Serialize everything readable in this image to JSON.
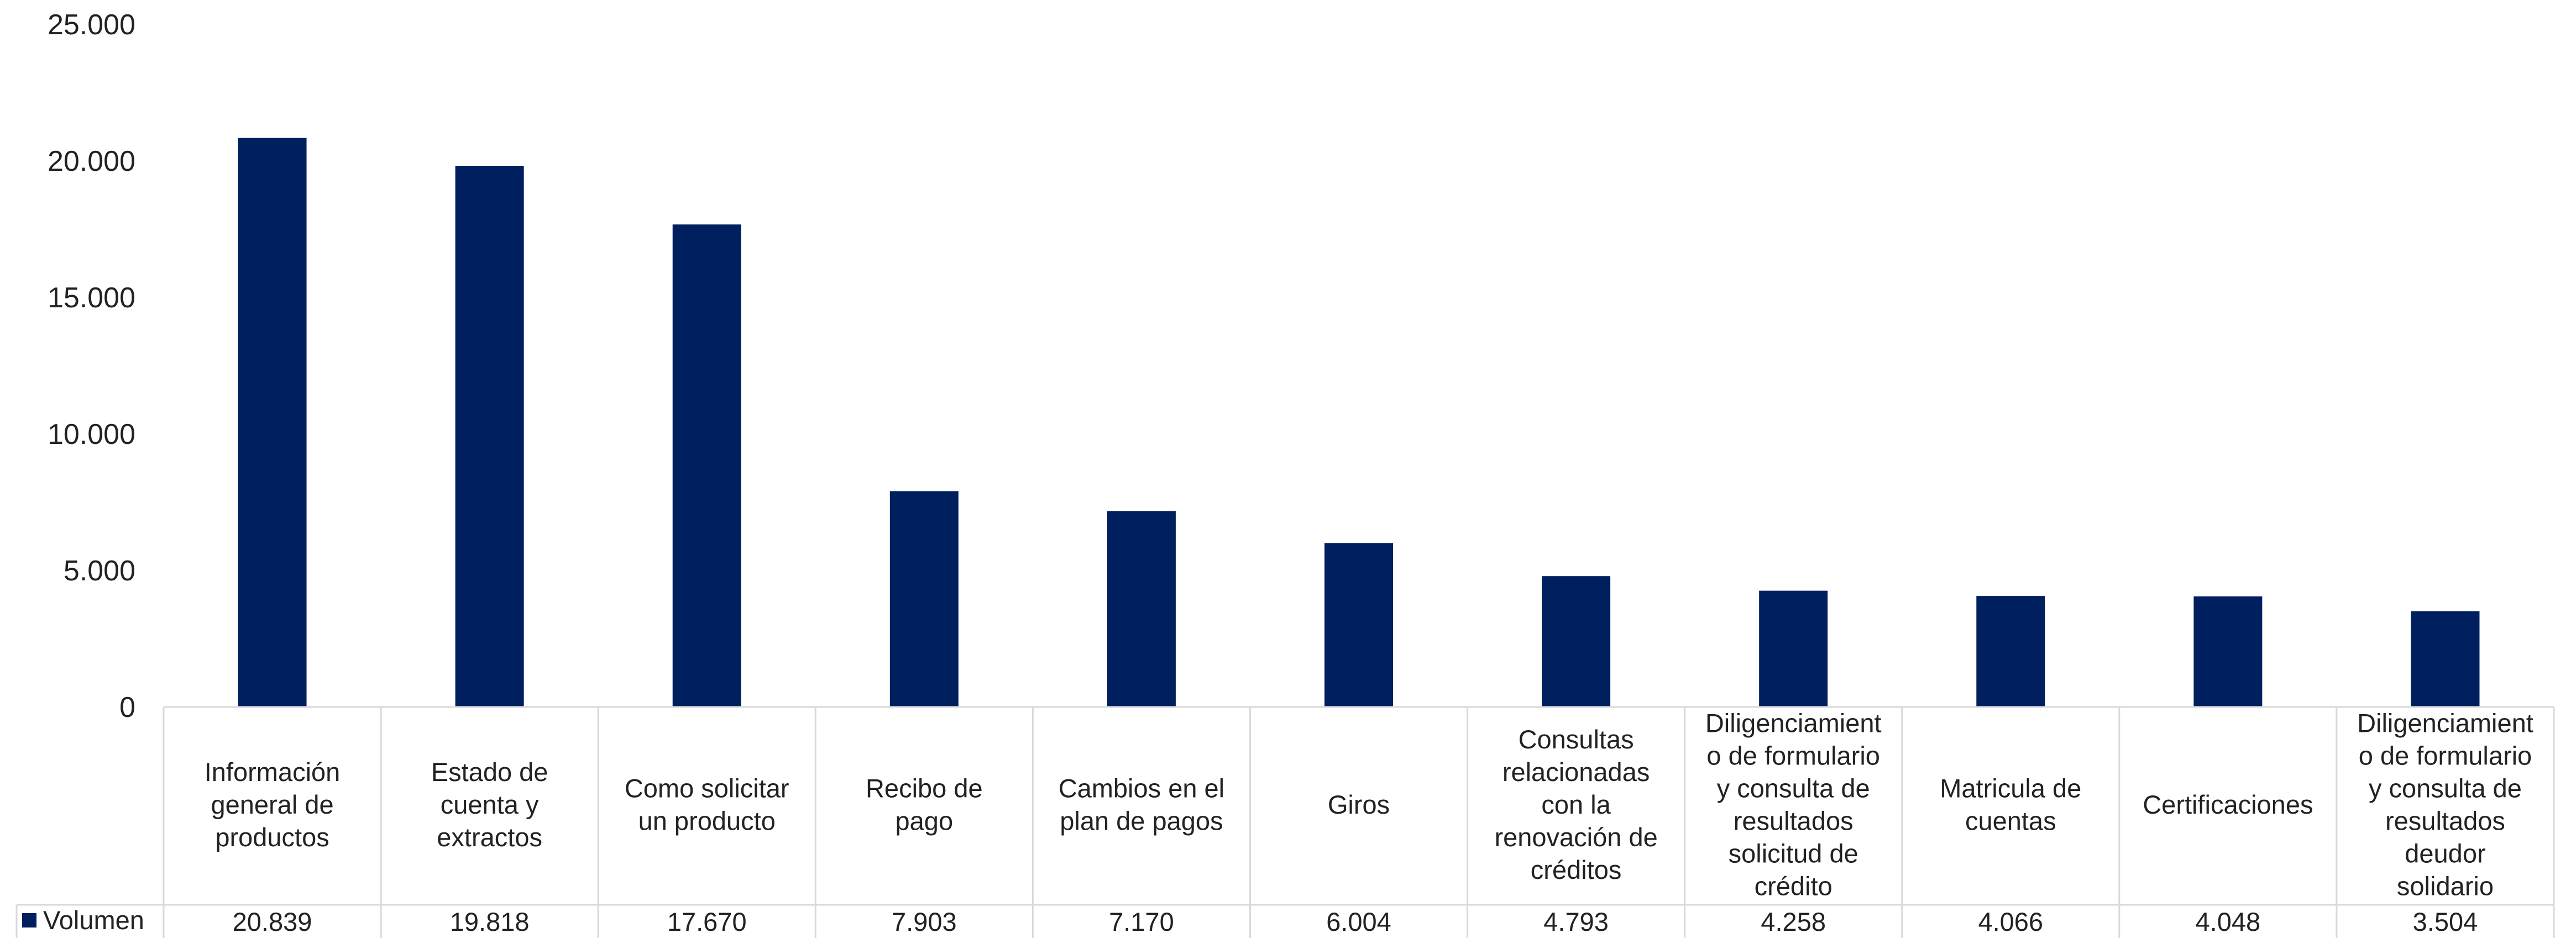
{
  "chart_data": {
    "type": "bar",
    "categories": [
      "Información general de productos",
      "Estado de cuenta y extractos",
      "Como solicitar un producto",
      "Recibo de pago",
      "Cambios en el plan de pagos",
      "Giros",
      "Consultas relacionadas con la renovación de créditos",
      "Diligenciamiento de formulario y consulta de resultados solicitud de crédito",
      "Matricula de cuentas",
      "Certificaciones",
      "Diligenciamiento de formulario y consulta de resultados deudor solidario"
    ],
    "category_lines": [
      [
        "Información",
        "general de",
        "productos"
      ],
      [
        "Estado de",
        "cuenta y",
        "extractos"
      ],
      [
        "Como solicitar",
        "un producto"
      ],
      [
        "Recibo de",
        "pago"
      ],
      [
        "Cambios en el",
        "plan de pagos"
      ],
      [
        "Giros"
      ],
      [
        "Consultas",
        "relacionadas",
        "con la",
        "renovación de",
        "créditos"
      ],
      [
        "Diligenciamient",
        "o de formulario",
        "y consulta de",
        "resultados",
        "solicitud de",
        "crédito"
      ],
      [
        "Matricula de",
        "cuentas"
      ],
      [
        "Certificaciones"
      ],
      [
        "Diligenciamient",
        "o de formulario",
        "y consulta de",
        "resultados",
        "deudor",
        "solidario"
      ]
    ],
    "series": [
      {
        "name": "Volumen",
        "values": [
          20839,
          19818,
          17670,
          7903,
          7170,
          6004,
          4793,
          4258,
          4066,
          4048,
          3504
        ],
        "value_labels": [
          "20.839",
          "19.818",
          "17.670",
          "7.903",
          "7.170",
          "6.004",
          "4.793",
          "4.258",
          "4.066",
          "4.048",
          "3.504"
        ]
      }
    ],
    "yticks": [
      0,
      5000,
      10000,
      15000,
      20000,
      25000
    ],
    "ytick_labels": [
      "0",
      "5.000",
      "10.000",
      "15.000",
      "20.000",
      "25.000"
    ],
    "ylim": [
      0,
      25000
    ],
    "grid": false,
    "legend": "data-table",
    "colors": {
      "bar": "#001f5f",
      "table_line": "#d9d9d9",
      "text": "#222222"
    }
  }
}
